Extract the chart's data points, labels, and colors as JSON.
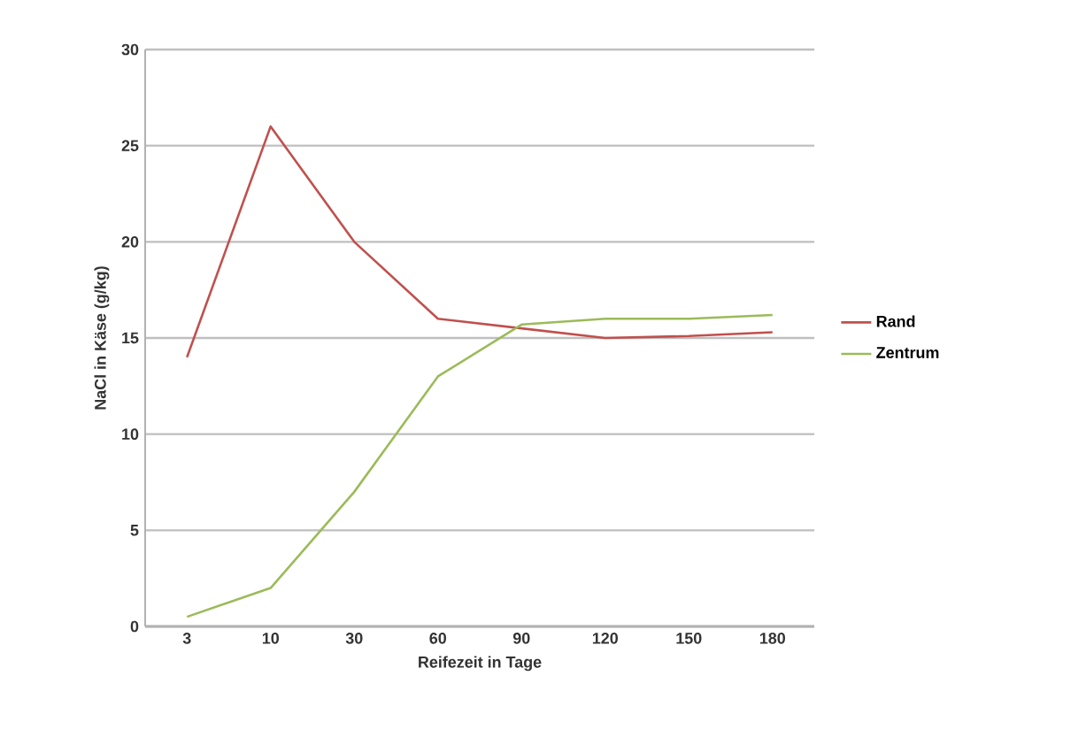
{
  "chart_data": {
    "type": "line",
    "xlabel": "Reifezeit in Tage",
    "ylabel": "NaCl in Käse (g/kg)",
    "categories": [
      "3",
      "10",
      "30",
      "60",
      "90",
      "120",
      "150",
      "180"
    ],
    "series": [
      {
        "name": "Rand",
        "color": "#c0504d",
        "values": [
          14,
          26,
          20,
          16,
          15.5,
          15,
          15.1,
          15.3
        ]
      },
      {
        "name": "Zentrum",
        "color": "#9bbb59",
        "values": [
          0.5,
          2,
          7,
          13,
          15.7,
          16,
          16,
          16.2
        ]
      }
    ],
    "ylim": [
      0,
      30
    ],
    "yticks": [
      0,
      5,
      10,
      15,
      20,
      25,
      30
    ],
    "grid": "y",
    "legend": "right",
    "marker": "none",
    "line_style": "solid"
  }
}
